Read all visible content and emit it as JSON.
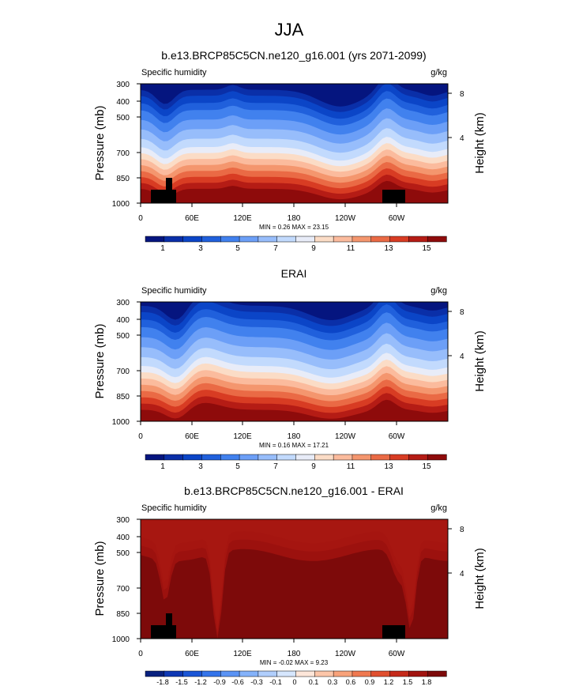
{
  "title": "JJA",
  "chart_data": [
    {
      "type": "heatmap",
      "title": "b.e13.BRCP85C5CN.ne120_g16.001 (yrs 2071-2099)",
      "field_label": "Specific humidity",
      "units": "g/kg",
      "ylabel": "Pressure (mb)",
      "ylabel_right": "Height (km)",
      "yticks": [
        "300",
        "400",
        "500",
        "700",
        "850",
        "1000"
      ],
      "yticks_right": [
        "8",
        "4"
      ],
      "xticks": [
        "0",
        "60E",
        "120E",
        "180",
        "120W",
        "60W"
      ],
      "stats": {
        "min_label": "MIN =",
        "min": "0.26",
        "max_label": "MAX =",
        "max": "23.15"
      },
      "colorbar_labels": [
        "1",
        "3",
        "5",
        "7",
        "9",
        "11",
        "13",
        "15"
      ]
    },
    {
      "type": "heatmap",
      "title": "ERAI",
      "field_label": "Specific humidity",
      "units": "g/kg",
      "ylabel": "Pressure (mb)",
      "ylabel_right": "Height (km)",
      "yticks": [
        "300",
        "400",
        "500",
        "700",
        "850",
        "1000"
      ],
      "yticks_right": [
        "8",
        "4"
      ],
      "xticks": [
        "0",
        "60E",
        "120E",
        "180",
        "120W",
        "60W"
      ],
      "stats": {
        "min_label": "MIN =",
        "min": "0.16",
        "max_label": "MAX =",
        "max": "17.21"
      },
      "colorbar_labels": [
        "1",
        "3",
        "5",
        "7",
        "9",
        "11",
        "13",
        "15"
      ]
    },
    {
      "type": "heatmap",
      "title": "b.e13.BRCP85C5CN.ne120_g16.001 - ERAI",
      "field_label": "Specific humidity",
      "units": "g/kg",
      "ylabel": "Pressure (mb)",
      "ylabel_right": "Height (km)",
      "yticks": [
        "300",
        "400",
        "500",
        "700",
        "850",
        "1000"
      ],
      "yticks_right": [
        "8",
        "4"
      ],
      "xticks": [
        "0",
        "60E",
        "120E",
        "180",
        "120W",
        "60W"
      ],
      "stats": {
        "min_label": "MIN =",
        "min": "-0.02",
        "max_label": "MAX =",
        "max": "9.23"
      },
      "colorbar_labels": [
        "-1.8",
        "-1.5",
        "-1.2",
        "-0.9",
        "-0.6",
        "-0.3",
        "-0.1",
        "0",
        "0.1",
        "0.3",
        "0.6",
        "0.9",
        "1.2",
        "1.5",
        "1.8"
      ]
    }
  ],
  "colors": {
    "abs": [
      "#05157f",
      "#0a2fa8",
      "#0b45c7",
      "#2060dc",
      "#4181ee",
      "#6c9ff7",
      "#97bdfb",
      "#c2dafd",
      "#e8ecf8",
      "#fbdcc6",
      "#fbbb9d",
      "#f4966e",
      "#ea6a45",
      "#d83c23",
      "#b51c15",
      "#8e0b0b"
    ],
    "diff": [
      "#08217f",
      "#0e38b4",
      "#1a55d6",
      "#3474ea",
      "#5a93f4",
      "#84b2fa",
      "#b0cefc",
      "#d6e6fd",
      "#fde6d9",
      "#fcc6a9",
      "#f8a27a",
      "#ef7950",
      "#e04f2f",
      "#c52a1a",
      "#a1130f",
      "#7d0a0a"
    ]
  }
}
